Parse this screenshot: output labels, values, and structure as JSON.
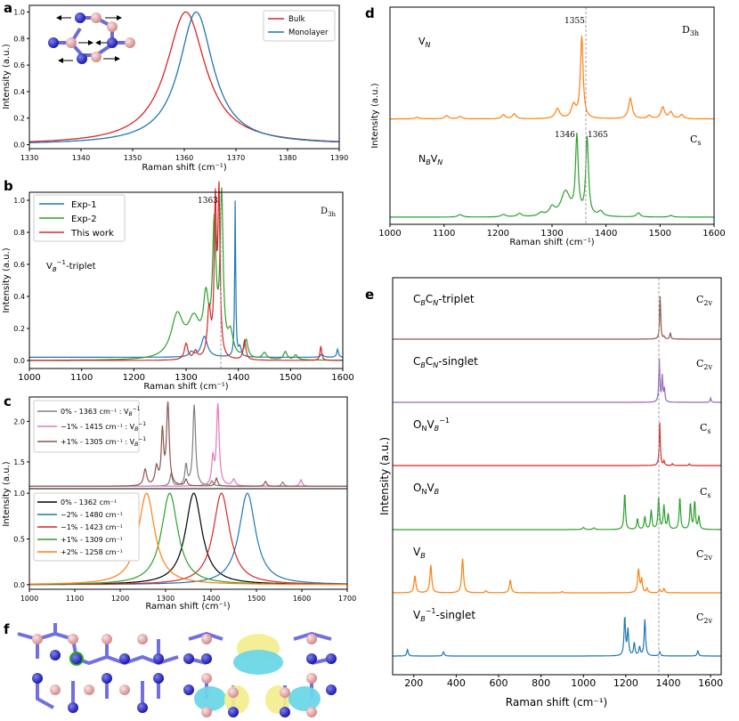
{
  "figure": {
    "panel_labels": [
      "a",
      "b",
      "c",
      "d",
      "e",
      "f"
    ],
    "raman_xlabel": "Raman shift (cm⁻¹)",
    "intensity_ylabel": "Intensity (a.u.)"
  },
  "colors": {
    "blue": "#1f77b4",
    "red": "#d62728",
    "green": "#2ca02c",
    "orange": "#ff7f0e",
    "purple": "#9467bd",
    "brown": "#8c564b",
    "pink": "#e377c2",
    "gray": "#7f7f7f",
    "black": "#000000",
    "dashed": "#a0a0a0",
    "boron_atom": "#e7a5a5",
    "nitrogen_atom": "#3333cc",
    "isosurface_yellow": "#f3ee8e",
    "isosurface_cyan": "#6cd6e6"
  },
  "chart_data": [
    {
      "panel": "a",
      "type": "line",
      "xlim": [
        1330,
        1390
      ],
      "ylim": [
        -0.03,
        1.05
      ],
      "xticks": [
        1330,
        1340,
        1350,
        1360,
        1370,
        1380,
        1390
      ],
      "yticks": [
        0.0,
        0.2,
        0.4,
        0.6,
        0.8,
        1.0
      ],
      "xlabel": "Raman shift (cm⁻¹)",
      "ylabel": "Intensity (a.u.)",
      "legend": "top-right",
      "series": [
        {
          "name": "Bulk",
          "color": "#d62728",
          "peaks": [
            [
              1360.3,
              1.0,
              4.6
            ]
          ]
        },
        {
          "name": "Monolayer",
          "color": "#1f77b4",
          "peaks": [
            [
              1362.3,
              1.0,
              4.0
            ]
          ]
        }
      ]
    },
    {
      "panel": "b",
      "type": "line",
      "xlim": [
        1000,
        1600
      ],
      "ylim": [
        -0.05,
        1.05
      ],
      "xticks": [
        1000,
        1100,
        1200,
        1300,
        1400,
        1500,
        1600
      ],
      "yticks": [
        0.0,
        0.2,
        0.4,
        0.6,
        0.8,
        1.0
      ],
      "xlabel": "Raman shift (cm⁻¹)",
      "ylabel": "Intensity (a.u.)",
      "legend": "top-left",
      "dashed_line_x": 1363,
      "annotations": [
        "1363",
        "D3h",
        "V_B⁻¹-triplet"
      ],
      "series": [
        {
          "name": "Exp-1",
          "color": "#1f77b4",
          "baseline": 0.02,
          "peaks": [
            [
              1335,
              0.13,
              7
            ],
            [
              1310,
              0.03,
              5
            ],
            [
              1394,
              0.97,
              1.2
            ],
            [
              1403,
              0.06,
              3
            ],
            [
              1590,
              0.05,
              2
            ],
            [
              1560,
              0.02,
              3
            ]
          ]
        },
        {
          "name": "Exp-2",
          "color": "#2ca02c",
          "baseline": 0.0,
          "peaks": [
            [
              1283,
              0.26,
              14
            ],
            [
              1315,
              0.22,
              14
            ],
            [
              1338,
              0.32,
              6
            ],
            [
              1354,
              0.78,
              4
            ],
            [
              1368,
              0.97,
              3.5
            ],
            [
              1385,
              0.14,
              6
            ],
            [
              1415,
              0.11,
              4
            ],
            [
              1450,
              0.04,
              5
            ],
            [
              1490,
              0.05,
              4
            ],
            [
              1510,
              0.03,
              4
            ]
          ]
        },
        {
          "name": "This work",
          "color": "#d62728",
          "baseline": 0.0,
          "peaks": [
            [
              1363,
              1.0,
              2.5
            ],
            [
              1356,
              0.93,
              2.5
            ],
            [
              1344,
              0.3,
              4
            ],
            [
              1300,
              0.1,
              4
            ],
            [
              1318,
              0.05,
              4
            ],
            [
              1412,
              0.12,
              3
            ],
            [
              1558,
              0.09,
              2
            ]
          ]
        }
      ]
    },
    {
      "panel": "c",
      "type": "line",
      "xlim": [
        1000,
        1700
      ],
      "xticks": [
        1000,
        1100,
        1200,
        1300,
        1400,
        1500,
        1600,
        1700
      ],
      "upper": {
        "ylim": [
          1.17,
          2.3
        ],
        "yticks": [
          1.5,
          2.0
        ],
        "baseline": 1.2,
        "legend": "top-left",
        "series": [
          {
            "name": "0% - 1363 cm⁻¹ : V_B⁻¹",
            "color": "#7f7f7f",
            "peaks": [
              [
                1363,
                1.0,
                3.5
              ],
              [
                1345,
                0.25,
                3
              ],
              [
                1312,
                0.15,
                3
              ],
              [
                1402,
                0.06,
                3
              ],
              [
                1558,
                0.05,
                3
              ]
            ]
          },
          {
            "name": "−1% - 1415 cm⁻¹ : V_B⁻¹",
            "color": "#e377c2",
            "peaks": [
              [
                1415,
                1.0,
                3.5
              ],
              [
                1404,
                0.32,
                3
              ],
              [
                1450,
                0.08,
                4
              ],
              [
                1598,
                0.08,
                3
              ]
            ]
          },
          {
            "name": "+1% - 1305 cm⁻¹ : V_B⁻¹",
            "color": "#8c564b",
            "peaks": [
              [
                1305,
                1.0,
                3.5
              ],
              [
                1293,
                0.65,
                3
              ],
              [
                1255,
                0.2,
                4
              ],
              [
                1280,
                0.22,
                4
              ],
              [
                1345,
                0.08,
                3
              ],
              [
                1412,
                0.1,
                3
              ],
              [
                1520,
                0.06,
                3
              ]
            ]
          }
        ]
      },
      "lower": {
        "ylim": [
          -0.05,
          1.05
        ],
        "yticks": [
          0.0,
          0.5,
          1.0
        ],
        "legend": "top-left",
        "series": [
          {
            "name": "0% - 1362 cm⁻¹",
            "color": "#000000",
            "peaks": [
              [
                1362,
                1.0,
                22
              ]
            ]
          },
          {
            "name": "−2% - 1480 cm⁻¹",
            "color": "#1f77b4",
            "peaks": [
              [
                1480,
                1.0,
                22
              ]
            ]
          },
          {
            "name": "−1% - 1423 cm⁻¹",
            "color": "#d62728",
            "peaks": [
              [
                1423,
                1.0,
                22
              ]
            ]
          },
          {
            "name": "+1% - 1309 cm⁻¹",
            "color": "#2ca02c",
            "peaks": [
              [
                1309,
                1.0,
                22
              ]
            ]
          },
          {
            "name": "+2% - 1258 cm⁻¹",
            "color": "#ff7f0e",
            "peaks": [
              [
                1258,
                1.0,
                22
              ]
            ]
          }
        ]
      },
      "xlabel": "Raman shift (cm⁻¹)",
      "ylabel": "Intensity (a.u.)"
    },
    {
      "panel": "d",
      "type": "line",
      "xlim": [
        1000,
        1600
      ],
      "xticks": [
        1000,
        1100,
        1200,
        1300,
        1400,
        1500,
        1600
      ],
      "xlabel": "Raman shift (cm⁻¹)",
      "ylabel": "Intensity (a.u.)",
      "dashed_line_x": 1363,
      "series": [
        {
          "name": "V_N",
          "color": "#ff7f0e",
          "offset": 1.2,
          "symmetry": "D3h",
          "peak_labels": [
            "1355"
          ],
          "peaks": [
            [
              1355,
              1.0,
              3
            ],
            [
              1340,
              0.16,
              5
            ],
            [
              1310,
              0.12,
              5
            ],
            [
              1230,
              0.06,
              4
            ],
            [
              1210,
              0.05,
              4
            ],
            [
              1130,
              0.03,
              4
            ],
            [
              1105,
              0.04,
              4
            ],
            [
              1050,
              0.02,
              4
            ],
            [
              1445,
              0.25,
              4
            ],
            [
              1480,
              0.04,
              4
            ],
            [
              1505,
              0.14,
              4
            ],
            [
              1520,
              0.08,
              4
            ],
            [
              1540,
              0.05,
              4
            ]
          ]
        },
        {
          "name": "N_BV_N",
          "color": "#2ca02c",
          "offset": 0.0,
          "symmetry": "Cs",
          "peak_labels": [
            "1346",
            "1365"
          ],
          "peaks": [
            [
              1346,
              0.95,
              3
            ],
            [
              1365,
              0.95,
              3
            ],
            [
              1325,
              0.3,
              10
            ],
            [
              1300,
              0.1,
              6
            ],
            [
              1280,
              0.04,
              6
            ],
            [
              1240,
              0.04,
              5
            ],
            [
              1210,
              0.03,
              5
            ],
            [
              1130,
              0.03,
              5
            ],
            [
              1390,
              0.06,
              5
            ],
            [
              1460,
              0.05,
              4
            ],
            [
              1520,
              0.02,
              4
            ]
          ]
        }
      ]
    },
    {
      "panel": "e",
      "type": "line",
      "xlim": [
        100,
        1650
      ],
      "xticks": [
        200,
        400,
        600,
        800,
        1000,
        1200,
        1400,
        1600
      ],
      "xlabel": "Raman shift (cm⁻¹)",
      "ylabel": "Intensity (a.u.)",
      "dashed_line_x": 1363,
      "series": [
        {
          "name": "C_BC_N-triplet",
          "color": "#8c564b",
          "symmetry": "C2v",
          "peaks": [
            [
              1362,
              1.0,
              3
            ],
            [
              1410,
              0.15,
              3
            ],
            [
              1380,
              0.05,
              3
            ]
          ]
        },
        {
          "name": "C_BC_N-singlet",
          "color": "#9467bd",
          "symmetry": "C2v",
          "peaks": [
            [
              1358,
              1.0,
              3
            ],
            [
              1372,
              0.6,
              3
            ],
            [
              1382,
              0.3,
              3
            ],
            [
              1600,
              0.1,
              3
            ]
          ]
        },
        {
          "name": "O_NV_B⁻¹",
          "color": "#d62728",
          "symmetry": "Cs",
          "peaks": [
            [
              1360,
              1.0,
              3
            ],
            [
              1380,
              0.1,
              3
            ],
            [
              1420,
              0.04,
              3
            ],
            [
              1500,
              0.04,
              3
            ]
          ]
        },
        {
          "name": "O_NV_B",
          "color": "#2ca02c",
          "symmetry": "Cs",
          "peaks": [
            [
              1195,
              0.85,
              4
            ],
            [
              1255,
              0.25,
              4
            ],
            [
              1290,
              0.3,
              4
            ],
            [
              1320,
              0.45,
              4
            ],
            [
              1355,
              0.75,
              4
            ],
            [
              1380,
              0.55,
              4
            ],
            [
              1400,
              0.35,
              4
            ],
            [
              1455,
              0.75,
              4
            ],
            [
              1505,
              0.6,
              4
            ],
            [
              1525,
              0.65,
              4
            ],
            [
              1545,
              0.3,
              4
            ],
            [
              1000,
              0.05,
              6
            ],
            [
              1050,
              0.04,
              6
            ]
          ]
        },
        {
          "name": "V_B",
          "color": "#ff7f0e",
          "symmetry": "C2v",
          "peaks": [
            [
              205,
              0.4,
              5
            ],
            [
              280,
              0.65,
              5
            ],
            [
              430,
              0.8,
              5
            ],
            [
              655,
              0.3,
              5
            ],
            [
              540,
              0.05,
              5
            ],
            [
              1260,
              0.55,
              5
            ],
            [
              1275,
              0.3,
              4
            ],
            [
              1300,
              0.1,
              4
            ],
            [
              1360,
              0.08,
              4
            ],
            [
              1380,
              0.1,
              4
            ],
            [
              900,
              0.03,
              5
            ]
          ]
        },
        {
          "name": "V_B⁻¹-singlet",
          "color": "#1f77b4",
          "symmetry": "C2v",
          "peaks": [
            [
              170,
              0.15,
              4
            ],
            [
              340,
              0.1,
              4
            ],
            [
              1195,
              0.9,
              4
            ],
            [
              1210,
              0.6,
              4
            ],
            [
              1240,
              0.3,
              4
            ],
            [
              1265,
              0.2,
              4
            ],
            [
              1290,
              0.85,
              4
            ],
            [
              1360,
              0.1,
              4
            ],
            [
              1540,
              0.12,
              4
            ]
          ]
        }
      ]
    }
  ]
}
